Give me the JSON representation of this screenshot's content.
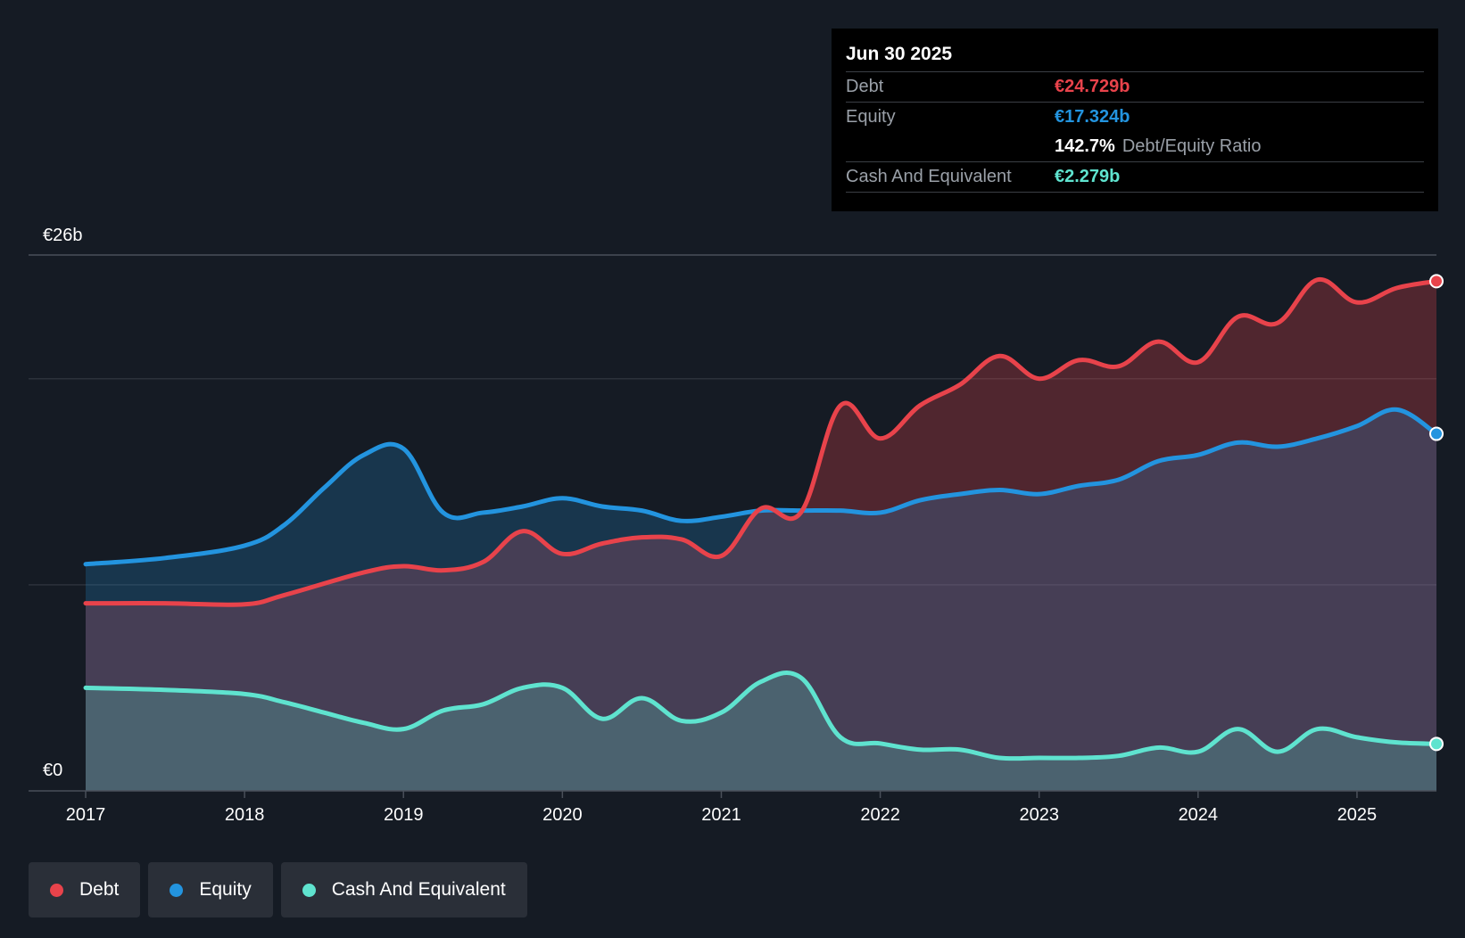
{
  "chart_data": {
    "type": "area",
    "y_unit_labels": {
      "top": "€26b",
      "bottom": "€0"
    },
    "ylim": [
      0,
      26
    ],
    "xlim": [
      2016.65,
      2025.5
    ],
    "x_ticks": [
      "2017",
      "2018",
      "2019",
      "2020",
      "2021",
      "2022",
      "2023",
      "2024",
      "2025"
    ],
    "series": [
      {
        "name": "Debt",
        "color": "#e8434b",
        "points": [
          [
            2017.0,
            9.1
          ],
          [
            2017.5,
            9.1
          ],
          [
            2018.0,
            9.05
          ],
          [
            2018.25,
            9.5
          ],
          [
            2018.75,
            10.6
          ],
          [
            2019.0,
            10.9
          ],
          [
            2019.25,
            10.7
          ],
          [
            2019.5,
            11.1
          ],
          [
            2019.75,
            12.6
          ],
          [
            2020.0,
            11.5
          ],
          [
            2020.25,
            12.0
          ],
          [
            2020.5,
            12.3
          ],
          [
            2020.75,
            12.2
          ],
          [
            2021.0,
            11.4
          ],
          [
            2021.25,
            13.7
          ],
          [
            2021.5,
            13.5
          ],
          [
            2021.75,
            18.7
          ],
          [
            2022.0,
            17.1
          ],
          [
            2022.25,
            18.7
          ],
          [
            2022.5,
            19.7
          ],
          [
            2022.75,
            21.1
          ],
          [
            2023.0,
            20.0
          ],
          [
            2023.25,
            20.9
          ],
          [
            2023.5,
            20.6
          ],
          [
            2023.75,
            21.8
          ],
          [
            2024.0,
            20.8
          ],
          [
            2024.25,
            23.0
          ],
          [
            2024.5,
            22.7
          ],
          [
            2024.75,
            24.8
          ],
          [
            2025.0,
            23.7
          ],
          [
            2025.25,
            24.4
          ],
          [
            2025.5,
            24.729
          ]
        ]
      },
      {
        "name": "Equity",
        "color": "#2394df",
        "points": [
          [
            2017.0,
            11.0
          ],
          [
            2017.5,
            11.3
          ],
          [
            2018.0,
            11.9
          ],
          [
            2018.25,
            12.9
          ],
          [
            2018.5,
            14.7
          ],
          [
            2018.75,
            16.3
          ],
          [
            2019.0,
            16.6
          ],
          [
            2019.25,
            13.5
          ],
          [
            2019.5,
            13.5
          ],
          [
            2019.75,
            13.8
          ],
          [
            2020.0,
            14.2
          ],
          [
            2020.25,
            13.8
          ],
          [
            2020.5,
            13.6
          ],
          [
            2020.75,
            13.1
          ],
          [
            2021.0,
            13.3
          ],
          [
            2021.25,
            13.6
          ],
          [
            2021.5,
            13.6
          ],
          [
            2021.75,
            13.6
          ],
          [
            2022.0,
            13.5
          ],
          [
            2022.25,
            14.1
          ],
          [
            2022.5,
            14.4
          ],
          [
            2022.75,
            14.6
          ],
          [
            2023.0,
            14.4
          ],
          [
            2023.25,
            14.8
          ],
          [
            2023.5,
            15.1
          ],
          [
            2023.75,
            16.0
          ],
          [
            2024.0,
            16.3
          ],
          [
            2024.25,
            16.9
          ],
          [
            2024.5,
            16.7
          ],
          [
            2024.75,
            17.1
          ],
          [
            2025.0,
            17.7
          ],
          [
            2025.25,
            18.5
          ],
          [
            2025.5,
            17.324
          ]
        ]
      },
      {
        "name": "Cash And Equivalent",
        "color": "#5fe3cf",
        "points": [
          [
            2017.0,
            5.0
          ],
          [
            2017.5,
            4.9
          ],
          [
            2018.0,
            4.7
          ],
          [
            2018.25,
            4.3
          ],
          [
            2018.5,
            3.8
          ],
          [
            2018.75,
            3.3
          ],
          [
            2019.0,
            3.0
          ],
          [
            2019.25,
            3.9
          ],
          [
            2019.5,
            4.2
          ],
          [
            2019.75,
            5.0
          ],
          [
            2020.0,
            5.0
          ],
          [
            2020.25,
            3.5
          ],
          [
            2020.5,
            4.5
          ],
          [
            2020.75,
            3.4
          ],
          [
            2021.0,
            3.8
          ],
          [
            2021.25,
            5.3
          ],
          [
            2021.5,
            5.5
          ],
          [
            2021.75,
            2.6
          ],
          [
            2022.0,
            2.3
          ],
          [
            2022.25,
            2.0
          ],
          [
            2022.5,
            2.0
          ],
          [
            2022.75,
            1.6
          ],
          [
            2023.0,
            1.6
          ],
          [
            2023.25,
            1.6
          ],
          [
            2023.5,
            1.7
          ],
          [
            2023.75,
            2.1
          ],
          [
            2024.0,
            1.9
          ],
          [
            2024.25,
            3.0
          ],
          [
            2024.5,
            1.9
          ],
          [
            2024.75,
            3.0
          ],
          [
            2025.0,
            2.6
          ],
          [
            2025.25,
            2.35
          ],
          [
            2025.5,
            2.279
          ]
        ]
      }
    ]
  },
  "tooltip": {
    "date": "Jun 30 2025",
    "debt_label": "Debt",
    "debt_value": "€24.729b",
    "equity_label": "Equity",
    "equity_value": "€17.324b",
    "ratio_value": "142.7%",
    "ratio_label": "Debt/Equity Ratio",
    "cash_label": "Cash And Equivalent",
    "cash_value": "€2.279b"
  },
  "legend": [
    {
      "label": "Debt",
      "color": "#e8434b"
    },
    {
      "label": "Equity",
      "color": "#2394df"
    },
    {
      "label": "Cash And Equivalent",
      "color": "#5fe3cf"
    }
  ]
}
